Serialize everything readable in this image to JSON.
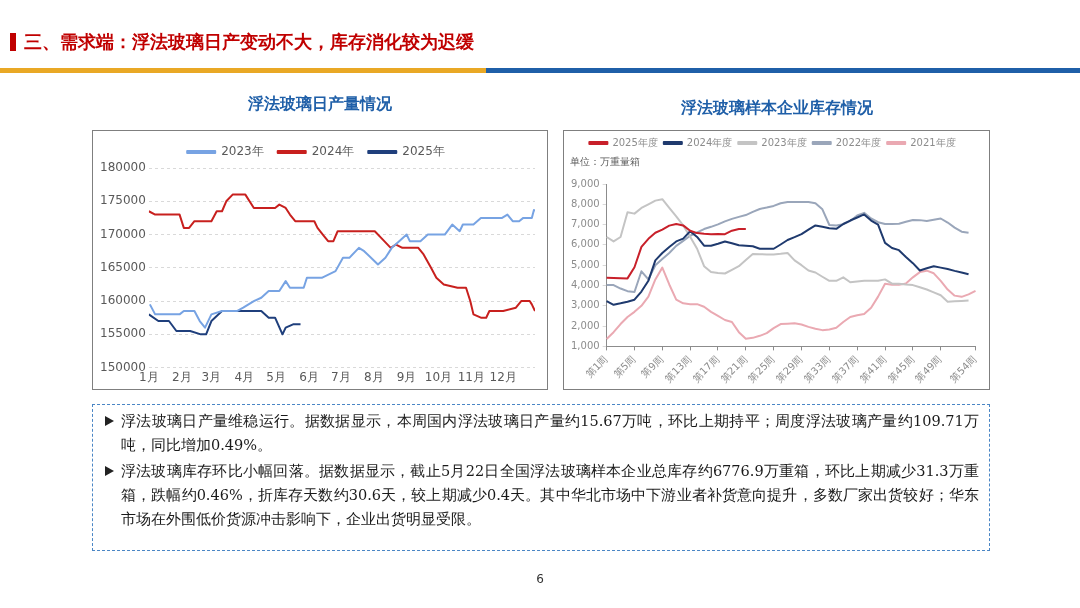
{
  "chart_data": [
    {
      "type": "line",
      "title": "浮法玻璃日产量情况",
      "legend": "top",
      "grid": "y",
      "marker": "none",
      "xlim": [
        "--01-01",
        "--12-31"
      ],
      "xticks": [
        {
          "value": "--01-01",
          "label": "1月"
        },
        {
          "value": "--02-01",
          "label": "2月"
        },
        {
          "value": "--03-01",
          "label": "3月"
        },
        {
          "value": "--04-01",
          "label": "4月"
        },
        {
          "value": "--05-01",
          "label": "5月"
        },
        {
          "value": "--06-01",
          "label": "6月"
        },
        {
          "value": "--07-01",
          "label": "7月"
        },
        {
          "value": "--08-01",
          "label": "8月"
        },
        {
          "value": "--09-01",
          "label": "9月"
        },
        {
          "value": "--10-01",
          "label": "10月"
        },
        {
          "value": "--11-01",
          "label": "11月"
        },
        {
          "value": "--12-01",
          "label": "12月"
        }
      ],
      "ylim": [
        150000,
        180000
      ],
      "yticks": [
        150000,
        155000,
        160000,
        165000,
        170000,
        175000,
        180000
      ],
      "series": [
        {
          "name": "2023年",
          "color": "#77a3e3",
          "x": [
            "--01-02",
            "--01-07",
            "--01-17",
            "--01-30",
            "--02-03",
            "--02-13",
            "--02-18",
            "--02-23",
            "--03-01",
            "--03-11",
            "--03-25",
            "--03-31",
            "--04-10",
            "--04-17",
            "--04-24",
            "--05-04",
            "--05-10",
            "--05-14",
            "--05-27",
            "--05-30",
            "--06-13",
            "--06-26",
            "--07-03",
            "--07-09",
            "--07-18",
            "--07-23",
            "--08-05",
            "--08-12",
            "--08-18",
            "--08-25",
            "--09-01",
            "--09-04",
            "--09-14",
            "--09-21",
            "--10-07",
            "--10-14",
            "--10-21",
            "--10-24",
            "--11-03",
            "--11-10",
            "--11-30",
            "--12-05",
            "--12-10",
            "--12-16",
            "--12-20",
            "--12-28",
            "--12-30",
            "--12-31"
          ],
          "values": [
            159500,
            158000,
            158000,
            158000,
            158500,
            158500,
            157000,
            156000,
            158000,
            158500,
            158500,
            159000,
            160000,
            160500,
            161500,
            161500,
            163000,
            162000,
            162000,
            163500,
            163500,
            164500,
            166500,
            166500,
            168000,
            167500,
            165500,
            166500,
            168000,
            169000,
            170000,
            169000,
            169000,
            170000,
            170000,
            171500,
            170500,
            171500,
            171500,
            172500,
            172500,
            173000,
            172000,
            172000,
            172500,
            172500,
            173700,
            173500
          ]
        },
        {
          "name": "2024年",
          "color": "#c8201e",
          "x": [
            "--01-01",
            "--01-07",
            "--01-30",
            "--02-03",
            "--02-08",
            "--02-13",
            "--03-01",
            "--03-06",
            "--03-11",
            "--03-15",
            "--03-21",
            "--04-02",
            "--04-10",
            "--04-30",
            "--05-04",
            "--05-10",
            "--05-14",
            "--05-19",
            "--06-06",
            "--06-09",
            "--06-14",
            "--06-19",
            "--06-24",
            "--06-28",
            "--08-02",
            "--08-08",
            "--08-17",
            "--08-22",
            "--08-28",
            "--09-12",
            "--09-17",
            "--09-24",
            "--09-29",
            "--10-06",
            "--10-19",
            "--10-27",
            "--10-31",
            "--11-03",
            "--11-10",
            "--11-15",
            "--11-18",
            "--12-01",
            "--12-13",
            "--12-18",
            "--12-26",
            "--12-28",
            "--12-31"
          ],
          "values": [
            173500,
            173000,
            173000,
            171000,
            171000,
            172000,
            172000,
            173500,
            173500,
            175000,
            176000,
            176000,
            174000,
            174000,
            174500,
            174000,
            173000,
            172000,
            172000,
            171000,
            170000,
            169000,
            169000,
            170500,
            170500,
            169500,
            168000,
            168500,
            168000,
            168000,
            167000,
            165000,
            163500,
            162500,
            162000,
            162000,
            160000,
            158000,
            157500,
            157500,
            158500,
            158500,
            159000,
            160000,
            160000,
            159500,
            158500
          ]
        },
        {
          "name": "2025年",
          "color": "#1f3f7c",
          "x": [
            "--01-01",
            "--01-10",
            "--01-20",
            "--01-27",
            "--02-09",
            "--02-19",
            "--02-24",
            "--03-01",
            "--03-11",
            "--04-17",
            "--04-24",
            "--04-30",
            "--05-07",
            "--05-10",
            "--05-17",
            "--05-24"
          ],
          "values": [
            158000,
            157000,
            157000,
            155500,
            155500,
            155000,
            155000,
            157000,
            158500,
            158500,
            157500,
            157500,
            155000,
            156000,
            156500,
            156500
          ]
        }
      ]
    },
    {
      "type": "line",
      "title": "浮法玻璃样本企业库存情况",
      "ylabel": "单位：万重量箱",
      "legend": "top",
      "grid": false,
      "marker": "none",
      "categories": [
        "第1周",
        null,
        null,
        null,
        "第5周",
        null,
        null,
        null,
        "第9周",
        null,
        null,
        null,
        "第13周",
        null,
        null,
        null,
        "第17周",
        null,
        null,
        null,
        "第21周",
        null,
        null,
        null,
        "第25周",
        null,
        null,
        null,
        "第29周",
        null,
        null,
        null,
        "第33周",
        null,
        null,
        null,
        "第37周",
        null,
        null,
        null,
        "第41周",
        null,
        null,
        null,
        "第45周",
        null,
        null,
        null,
        "第49周",
        null,
        null,
        null,
        null,
        "第54周"
      ],
      "ylim": [
        1000,
        9000
      ],
      "yticks": [
        {
          "value": 1000,
          "label": "1,000"
        },
        {
          "value": 2000,
          "label": "2,000"
        },
        {
          "value": 3000,
          "label": "3,000"
        },
        {
          "value": 4000,
          "label": "4,000"
        },
        {
          "value": 5000,
          "label": "5,000"
        },
        {
          "value": 6000,
          "label": "6,000"
        },
        {
          "value": 7000,
          "label": "7,000"
        },
        {
          "value": 8000,
          "label": "8,000"
        },
        {
          "value": 9000,
          "label": "9,000"
        }
      ],
      "series": [
        {
          "name": "2025年度",
          "color": "#c8202a",
          "values": [
            4380,
            4370,
            4360,
            4350,
            4900,
            5900,
            6300,
            6600,
            6750,
            6950,
            7030,
            6960,
            6700,
            6580,
            6550,
            6530,
            6540,
            6530,
            6700,
            6780,
            6780,
            null,
            null,
            null,
            null,
            null,
            null,
            null,
            null,
            null,
            null,
            null,
            null,
            null,
            null,
            null,
            null,
            null,
            null,
            null,
            null,
            null,
            null,
            null,
            null,
            null,
            null,
            null,
            null,
            null,
            null,
            null,
            null,
            null
          ]
        },
        {
          "name": "2024年度",
          "color": "#1f3a6e",
          "values": [
            3230,
            3050,
            3120,
            3200,
            3300,
            3700,
            4230,
            5240,
            5600,
            5900,
            6170,
            6310,
            6670,
            6390,
            5960,
            5960,
            6060,
            6170,
            6080,
            5980,
            5960,
            5930,
            5810,
            5810,
            5810,
            6020,
            6240,
            6380,
            6530,
            6750,
            6960,
            6890,
            6820,
            6790,
            7030,
            7200,
            7350,
            7500,
            7200,
            7000,
            6100,
            5850,
            5740,
            5400,
            5100,
            4740,
            4850,
            4950,
            4880,
            4810,
            4720,
            4640,
            4550,
            null
          ]
        },
        {
          "name": "2023年度",
          "color": "#c4c4c4",
          "values": [
            6390,
            6170,
            6390,
            7610,
            7540,
            7820,
            8000,
            8180,
            8250,
            7820,
            7400,
            6960,
            6400,
            5810,
            4950,
            4660,
            4620,
            4590,
            4770,
            4950,
            5250,
            5550,
            5540,
            5530,
            5530,
            5560,
            5600,
            5240,
            5000,
            4740,
            4640,
            4430,
            4230,
            4230,
            4400,
            4160,
            4200,
            4230,
            4230,
            4230,
            4300,
            4090,
            4090,
            4050,
            4020,
            3910,
            3800,
            3660,
            3520,
            3200,
            3220,
            3240,
            3260,
            null
          ]
        },
        {
          "name": "2022年度",
          "color": "#9aa6ba",
          "values": [
            4020,
            4020,
            3850,
            3720,
            3680,
            4700,
            4300,
            5000,
            5300,
            5600,
            5950,
            6200,
            6450,
            6620,
            6780,
            6890,
            7010,
            7160,
            7280,
            7380,
            7470,
            7630,
            7770,
            7840,
            7920,
            8050,
            8110,
            8110,
            8110,
            8110,
            8050,
            7750,
            6980,
            6960,
            7020,
            7180,
            7450,
            7580,
            7300,
            7120,
            7030,
            7030,
            7040,
            7140,
            7230,
            7220,
            7180,
            7240,
            7300,
            7100,
            6850,
            6650,
            6600,
            null
          ]
        },
        {
          "name": "2021年度",
          "color": "#eaa9b2",
          "values": [
            1360,
            1700,
            2100,
            2450,
            2700,
            3000,
            3450,
            4300,
            4880,
            4050,
            3300,
            3120,
            3080,
            3080,
            2950,
            2700,
            2500,
            2300,
            2200,
            1700,
            1380,
            1420,
            1520,
            1650,
            1900,
            2100,
            2120,
            2140,
            2080,
            1960,
            1870,
            1800,
            1830,
            1920,
            2200,
            2450,
            2530,
            2600,
            2900,
            3450,
            4090,
            4040,
            4030,
            4100,
            4400,
            4660,
            4730,
            4600,
            4230,
            3800,
            3500,
            3440,
            3560,
            3730
          ]
        }
      ]
    },
    {
      "type": "other",
      "title": "三、需求端：浮法玻璃日产变动不大，库存消化较为迟缓",
      "annotations": [
        "浮法玻璃日产量维稳运行。据数据显示，本周国内浮法玻璃日产量约15.67万吨，环比上期持平；周度浮法玻璃产量约109.71万吨，同比增加0.49%。",
        "浮法玻璃库存环比小幅回落。据数据显示，截止5月22日全国浮法玻璃样本企业总库存约6776.9万重箱，环比上期减少31.3万重箱，跌幅约0.46%，折库存天数约30.6天，较上期减少0.4天。其中华北市场中下游业者补货意向提升，多数厂家出货较好；华东市场在外围低价货源冲击影响下，企业出货明显受限。",
        "6"
      ]
    }
  ]
}
